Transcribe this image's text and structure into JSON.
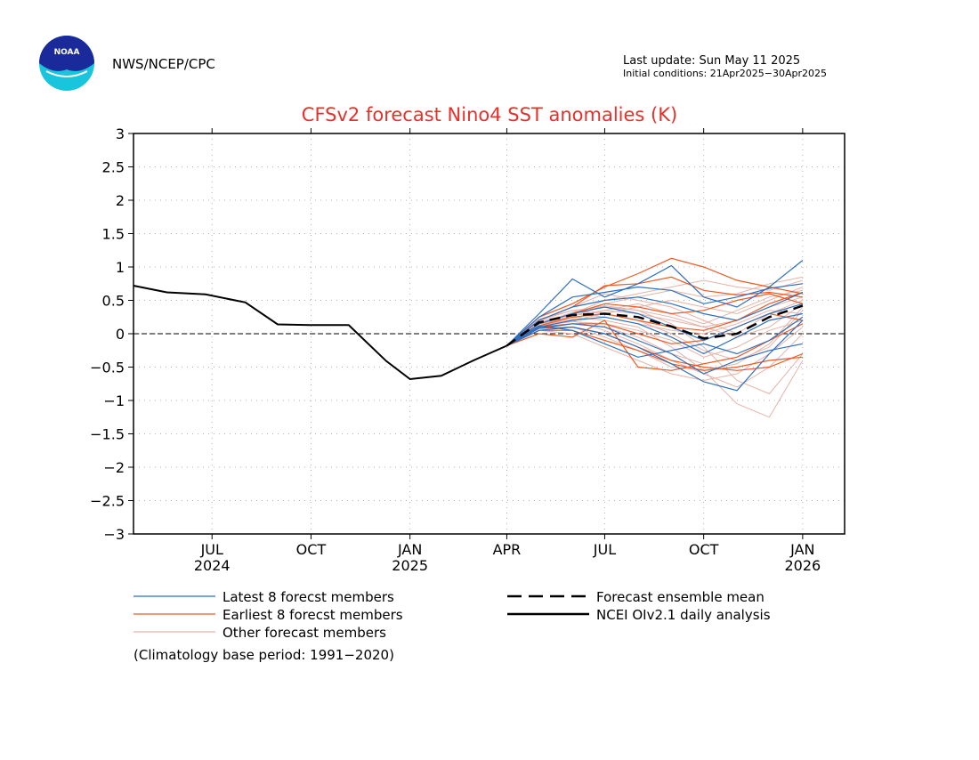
{
  "header": {
    "logo_text": "NOAA",
    "org": "NWS/NCEP/CPC",
    "last_update": "Last update: Sun May 11 2025",
    "initial_conditions": "Initial conditions: 21Apr2025−30Apr2025"
  },
  "colors": {
    "title": "#e8302a",
    "latest": "#2f6fbf",
    "earliest": "#ef5a24",
    "other": "#e6b3a8",
    "mean": "#000000",
    "analysis": "#000000",
    "grid": "#b0b0b0"
  },
  "chart_data": {
    "type": "line",
    "title": "CFSv2 forecast Nino4 SST anomalies (K)",
    "ylim": [
      -3,
      3
    ],
    "y_ticks": [
      "3",
      "2.5",
      "2",
      "1.5",
      "1",
      "0.5",
      "0",
      "−0.5",
      "−1",
      "−1.5",
      "−2",
      "−2.5",
      "−3"
    ],
    "y_tick_values": [
      3,
      2.5,
      2,
      1.5,
      1,
      0.5,
      0,
      -0.5,
      -1,
      -1.5,
      -2,
      -2.5,
      -3
    ],
    "xlim": [
      "2024-04-19",
      "2026-02-09"
    ],
    "x_ticks": [
      {
        "date": "2024-07-01",
        "month": "JUL",
        "year": "2024"
      },
      {
        "date": "2024-10-01",
        "month": "OCT",
        "year": ""
      },
      {
        "date": "2025-01-01",
        "month": "JAN",
        "year": "2025"
      },
      {
        "date": "2025-04-01",
        "month": "APR",
        "year": ""
      },
      {
        "date": "2025-07-01",
        "month": "JUL",
        "year": ""
      },
      {
        "date": "2025-10-01",
        "month": "OCT",
        "year": ""
      },
      {
        "date": "2026-01-01",
        "month": "JAN",
        "year": "2026"
      }
    ],
    "grid": true,
    "zero_line": true,
    "analysis": {
      "name": "NCEI OIv2.1 daily analysis",
      "x": [
        "2024-04-19",
        "2024-05-20",
        "2024-06-25",
        "2024-08-01",
        "2024-08-31",
        "2024-09-30",
        "2024-11-05",
        "2024-12-10",
        "2025-01-01",
        "2025-01-30",
        "2025-03-01",
        "2025-04-01"
      ],
      "y": [
        0.72,
        0.62,
        0.59,
        0.47,
        0.14,
        0.13,
        0.13,
        -0.41,
        -0.68,
        -0.63,
        -0.4,
        -0.18
      ]
    },
    "forecast_x": [
      "2025-04-01",
      "2025-05-01",
      "2025-06-01",
      "2025-07-01",
      "2025-08-01",
      "2025-09-01",
      "2025-10-01",
      "2025-11-01",
      "2025-12-01",
      "2026-01-01"
    ],
    "mean": {
      "name": "Forecast ensemble mean",
      "y": [
        -0.18,
        0.17,
        0.28,
        0.3,
        0.25,
        0.11,
        -0.07,
        0.0,
        0.25,
        0.42
      ]
    },
    "latest": {
      "name": "Latest 8 forecst members",
      "members": [
        [
          -0.18,
          0.3,
          0.82,
          0.55,
          0.75,
          1.02,
          0.55,
          0.4,
          0.7,
          1.1
        ],
        [
          -0.18,
          0.25,
          0.55,
          0.62,
          0.7,
          0.65,
          0.45,
          0.55,
          0.68,
          0.75
        ],
        [
          -0.18,
          0.2,
          0.4,
          0.5,
          0.55,
          0.45,
          0.3,
          0.2,
          0.4,
          0.62
        ],
        [
          -0.18,
          0.15,
          0.3,
          0.4,
          0.3,
          0.1,
          -0.1,
          0.1,
          0.3,
          0.45
        ],
        [
          -0.18,
          0.1,
          0.2,
          0.25,
          0.15,
          -0.05,
          -0.3,
          -0.05,
          0.2,
          0.3
        ],
        [
          -0.18,
          0.05,
          0.1,
          0.0,
          -0.2,
          -0.45,
          -0.72,
          -0.85,
          -0.3,
          0.2
        ],
        [
          -0.18,
          0.08,
          0.15,
          0.1,
          -0.1,
          -0.3,
          -0.6,
          -0.4,
          -0.25,
          -0.15
        ],
        [
          -0.18,
          0.12,
          0.05,
          -0.15,
          -0.35,
          -0.25,
          -0.15,
          -0.3,
          -0.1,
          0.25
        ]
      ]
    },
    "earliest": {
      "name": "Earliest 8 forecst members",
      "members": [
        [
          -0.18,
          0.25,
          0.45,
          0.7,
          0.9,
          1.13,
          1.0,
          0.8,
          0.7,
          0.6
        ],
        [
          -0.18,
          0.2,
          0.4,
          0.72,
          0.75,
          0.85,
          0.65,
          0.58,
          0.62,
          0.55
        ],
        [
          -0.18,
          0.15,
          0.3,
          0.45,
          0.4,
          0.3,
          0.35,
          0.5,
          0.6,
          0.45
        ],
        [
          -0.18,
          0.12,
          0.25,
          0.3,
          0.2,
          0.1,
          0.05,
          0.2,
          0.45,
          0.62
        ],
        [
          -0.18,
          0.1,
          0.15,
          0.15,
          0.0,
          -0.15,
          -0.1,
          0.1,
          0.3,
          0.2
        ],
        [
          -0.18,
          0.05,
          0.05,
          -0.1,
          -0.25,
          -0.45,
          -0.55,
          -0.5,
          -0.4,
          -0.35
        ],
        [
          -0.18,
          0.08,
          0.1,
          0.0,
          -0.2,
          -0.4,
          -0.5,
          -0.55,
          -0.5,
          -0.3
        ],
        [
          -0.18,
          0.0,
          -0.05,
          0.2,
          -0.5,
          -0.55,
          -0.45,
          -0.35,
          -0.1,
          0.15
        ]
      ]
    },
    "other": {
      "name": "Other forecast members",
      "members": [
        [
          -0.18,
          0.2,
          0.35,
          0.4,
          0.35,
          0.15,
          -0.2,
          -0.7,
          -0.9,
          -0.3
        ],
        [
          -0.18,
          0.15,
          0.25,
          0.2,
          0.1,
          -0.2,
          -0.55,
          -1.05,
          -1.25,
          -0.4
        ],
        [
          -0.18,
          0.18,
          0.3,
          0.5,
          0.6,
          0.7,
          0.8,
          0.7,
          0.65,
          0.8
        ],
        [
          -0.18,
          0.1,
          0.2,
          0.3,
          0.4,
          0.5,
          0.4,
          0.3,
          0.5,
          0.7
        ],
        [
          -0.18,
          0.12,
          0.28,
          0.35,
          0.3,
          0.2,
          0.1,
          0.2,
          0.4,
          0.55
        ],
        [
          -0.18,
          0.05,
          0.0,
          -0.2,
          -0.4,
          -0.6,
          -0.7,
          -0.6,
          -0.3,
          0.1
        ],
        [
          -0.18,
          0.08,
          0.15,
          0.1,
          -0.05,
          -0.3,
          -0.45,
          -0.35,
          -0.1,
          0.25
        ],
        [
          -0.18,
          0.2,
          0.4,
          0.6,
          0.5,
          0.4,
          0.2,
          0.0,
          0.3,
          0.5
        ],
        [
          -0.18,
          0.15,
          0.2,
          0.05,
          -0.15,
          -0.4,
          -0.6,
          -0.8,
          -0.5,
          0.0
        ],
        [
          -0.18,
          0.1,
          0.25,
          0.45,
          0.55,
          0.65,
          0.55,
          0.6,
          0.75,
          0.85
        ],
        [
          -0.18,
          0.22,
          0.35,
          0.3,
          0.2,
          0.0,
          -0.25,
          -0.4,
          -0.2,
          0.35
        ],
        [
          -0.18,
          0.05,
          0.1,
          -0.05,
          -0.25,
          -0.5,
          -0.55,
          -0.45,
          -0.15,
          0.4
        ],
        [
          -0.18,
          0.18,
          0.3,
          0.25,
          0.15,
          0.05,
          0.0,
          0.15,
          0.35,
          0.3
        ],
        [
          -0.18,
          0.12,
          0.18,
          0.15,
          0.05,
          -0.1,
          -0.35,
          -0.2,
          0.05,
          0.2
        ],
        [
          -0.18,
          0.1,
          0.22,
          0.35,
          0.45,
          0.3,
          0.15,
          0.35,
          0.55,
          0.65
        ],
        [
          -0.18,
          0.15,
          0.32,
          0.42,
          0.35,
          0.25,
          0.1,
          -0.05,
          0.1,
          0.45
        ]
      ]
    },
    "legend": {
      "latest": "Latest 8 forecst members",
      "earliest": "Earliest 8 forecst members",
      "other": "Other forecast members",
      "mean": "Forecast ensemble mean",
      "analysis": "NCEI OIv2.1 daily analysis",
      "note": "(Climatology base period: 1991−2020)"
    }
  }
}
